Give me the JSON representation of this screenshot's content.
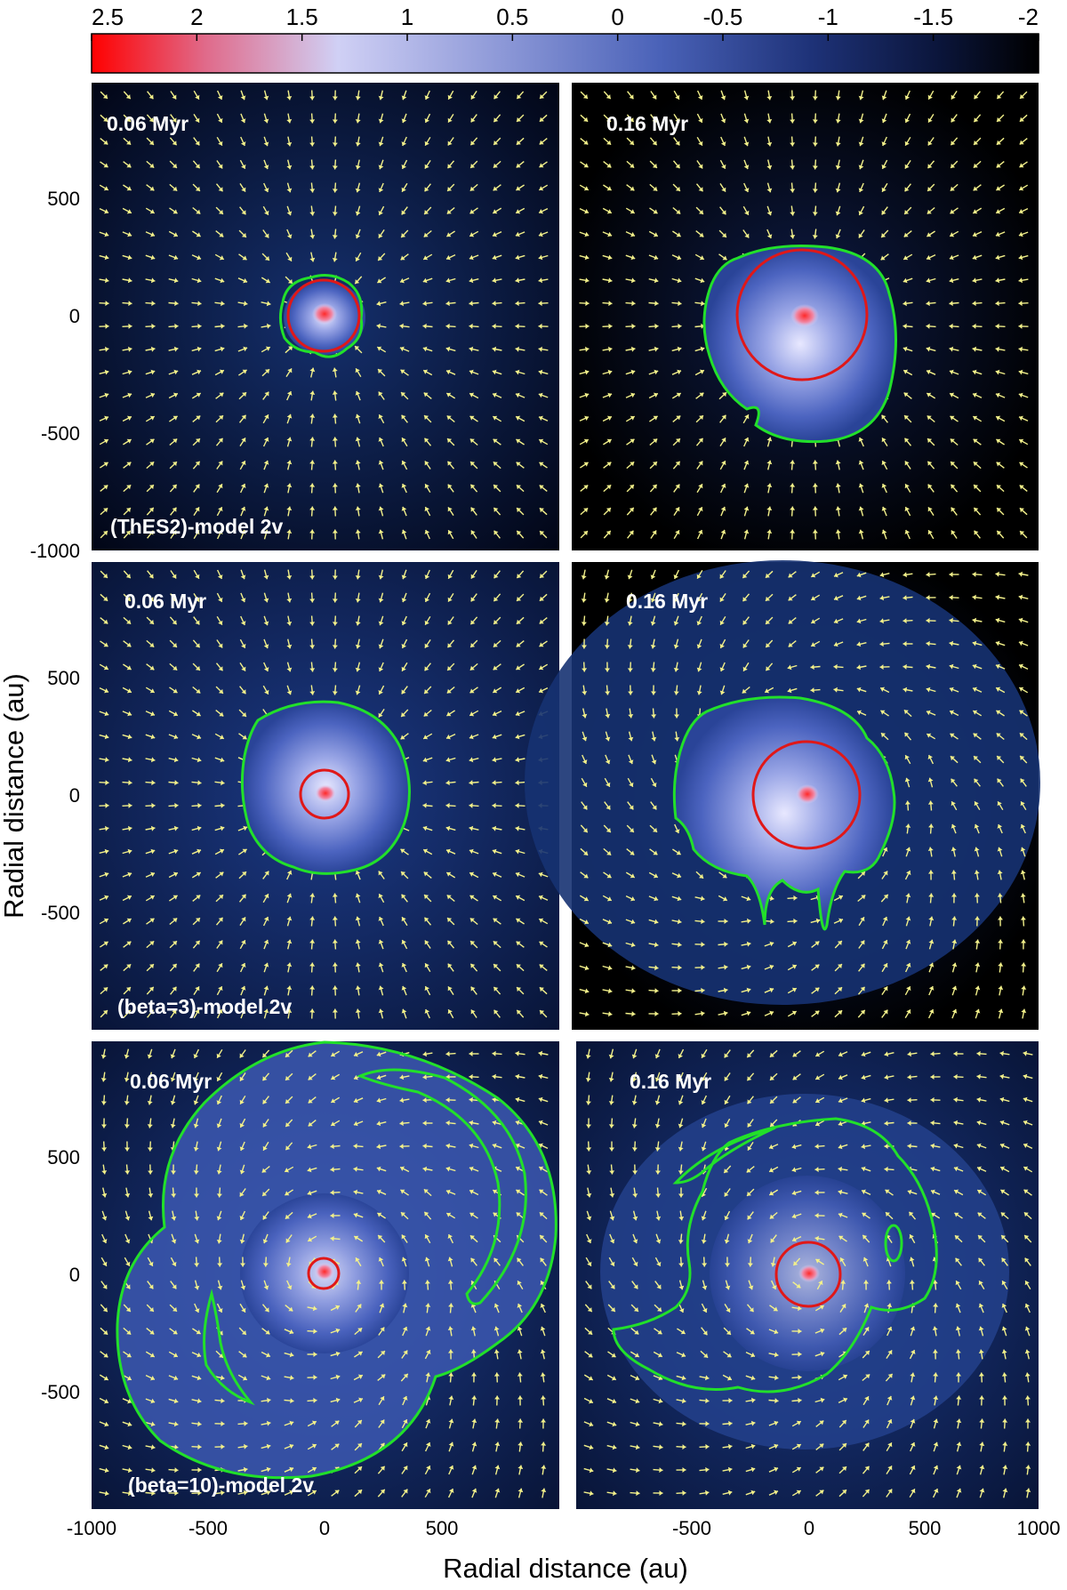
{
  "figure": {
    "colorbar": {
      "ticks": [
        "2.5",
        "2",
        "1.5",
        "1",
        "0.5",
        "0",
        "-0.5",
        "-1",
        "-1.5",
        "-2"
      ],
      "colors": {
        "high": "#ff1a1a",
        "mid": "#c8c8f2",
        "low": "#1a2f6e",
        "min": "#000000"
      }
    },
    "y_axis": {
      "title": "Radial distance (au)",
      "ticks": [
        "500",
        "0",
        "-500",
        "-1000"
      ]
    },
    "x_axis": {
      "title": "Radial distance (au)",
      "ticks_left": [
        "-1000",
        "-500",
        "0",
        "500"
      ],
      "ticks_right": [
        "-500",
        "0",
        "500",
        "1000"
      ]
    },
    "panels": [
      {
        "time": "0.06 Myr",
        "model": "(ThES2)-model 2v"
      },
      {
        "time": "0.16 Myr",
        "model": ""
      },
      {
        "time": "0.06 Myr",
        "model": "(beta=3)-model 2v"
      },
      {
        "time": "0.16 Myr",
        "model": ""
      },
      {
        "time": "0.06 Myr",
        "model": "(beta=10)-model 2v"
      },
      {
        "time": "0.16 Myr",
        "model": ""
      }
    ],
    "colors": {
      "disk_contour": "#22e02a",
      "circle": "#e01818",
      "arrows": "#f2f08a",
      "background_dark": "#06112e"
    }
  }
}
